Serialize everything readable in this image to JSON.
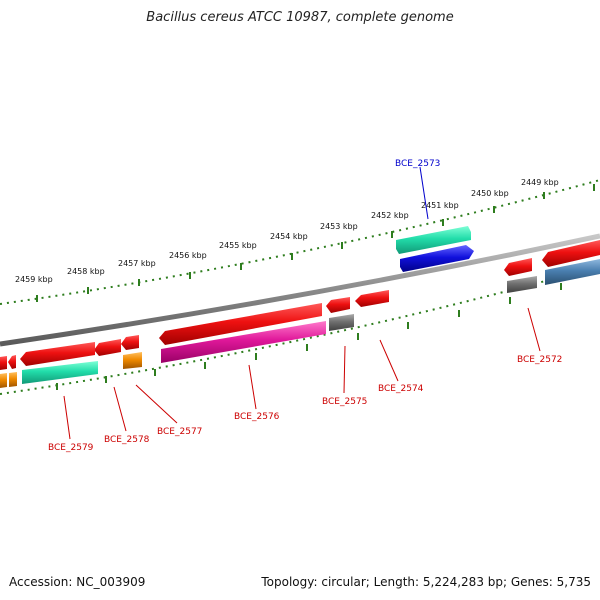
{
  "title": "Bacillus cereus ATCC 10987, complete genome",
  "accession": "Accession: NC_003909",
  "topology": "Topology: circular; Length: 5,224,283 bp; Genes: 5,735",
  "colors": {
    "backbone": "#8a8a8a",
    "tick": "#2e7d1e",
    "label_red": "#cc0000",
    "label_blue": "#0000cc",
    "cds_red": "#ee1111",
    "trna_green": "#22ddaa",
    "blue_feature": "#1111dd",
    "pink_feature": "#e0189a",
    "gray_feature": "#707070",
    "orange_feature": "#f08a00",
    "steel_feature": "#4a7fb0"
  },
  "scale_labels": [
    "2459 kbp",
    "2458 kbp",
    "2457 kbp",
    "2456 kbp",
    "2455 kbp",
    "2454 kbp",
    "2453 kbp",
    "2452 kbp",
    "2451 kbp",
    "2450 kbp",
    "2449 kbp"
  ],
  "gene_labels": [
    {
      "text": "BCE_2573",
      "color": "blue"
    },
    {
      "text": "BCE_2572",
      "color": "red"
    },
    {
      "text": "BCE_2574",
      "color": "red"
    },
    {
      "text": "BCE_2575",
      "color": "red"
    },
    {
      "text": "BCE_2576",
      "color": "red"
    },
    {
      "text": "BCE_2577",
      "color": "red"
    },
    {
      "text": "BCE_2578",
      "color": "red"
    },
    {
      "text": "BCE_2579",
      "color": "red"
    }
  ]
}
